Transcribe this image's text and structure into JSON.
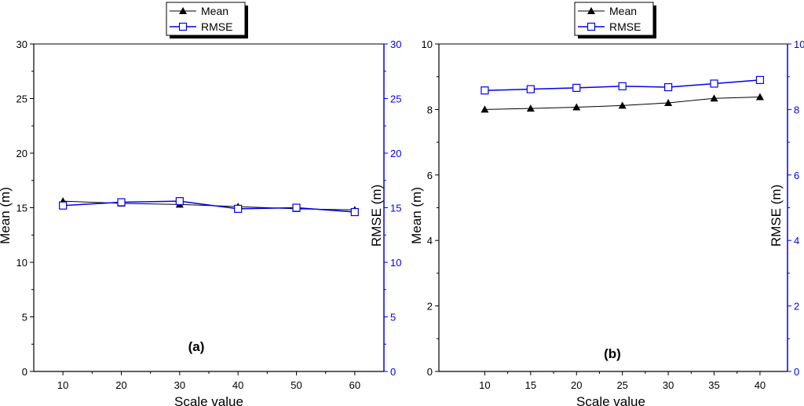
{
  "colors": {
    "mean": "#000000",
    "rmse": "#0000ee",
    "axis": "#000000",
    "right_axis": "#0000ee"
  },
  "chart_data": [
    {
      "type": "line",
      "panel_label": "(a)",
      "xlabel": "Scale value",
      "ylabel_left": "Mean (m)",
      "ylabel_right": "RMSE (m)",
      "xlim": [
        5,
        65
      ],
      "xticks": [
        10,
        20,
        30,
        40,
        50,
        60
      ],
      "ylim_left": [
        0,
        30
      ],
      "ylim_right": [
        0,
        30
      ],
      "yticks": [
        0,
        5,
        10,
        15,
        20,
        25,
        30
      ],
      "x": [
        10,
        20,
        30,
        40,
        50,
        60
      ],
      "series": [
        {
          "name": "Mean",
          "axis": "left",
          "marker": "filled-triangle",
          "values": [
            15.6,
            15.4,
            15.3,
            15.1,
            14.9,
            14.8
          ]
        },
        {
          "name": "RMSE",
          "axis": "right",
          "marker": "open-square",
          "values": [
            15.2,
            15.5,
            15.6,
            14.9,
            15.0,
            14.6
          ]
        }
      ],
      "legend": [
        "Mean",
        "RMSE"
      ],
      "legend_position": "top-center",
      "grid": false
    },
    {
      "type": "line",
      "panel_label": "(b)",
      "xlabel": "Scale value",
      "ylabel_left": "Mean (m)",
      "ylabel_right": "RMSE (m)",
      "xlim": [
        5,
        43
      ],
      "xticks": [
        10,
        15,
        20,
        25,
        30,
        35,
        40
      ],
      "ylim_left": [
        0,
        10
      ],
      "ylim_right": [
        0,
        10
      ],
      "yticks": [
        0,
        2,
        4,
        6,
        8,
        10
      ],
      "x": [
        10,
        15,
        20,
        25,
        30,
        35,
        40
      ],
      "series": [
        {
          "name": "Mean",
          "axis": "left",
          "marker": "filled-triangle",
          "values": [
            8.0,
            8.03,
            8.07,
            8.12,
            8.2,
            8.34,
            8.38
          ]
        },
        {
          "name": "RMSE",
          "axis": "right",
          "marker": "open-square",
          "values": [
            8.58,
            8.62,
            8.66,
            8.71,
            8.68,
            8.79,
            8.9
          ]
        }
      ],
      "legend": [
        "Mean",
        "RMSE"
      ],
      "legend_position": "top-center",
      "grid": false
    }
  ]
}
